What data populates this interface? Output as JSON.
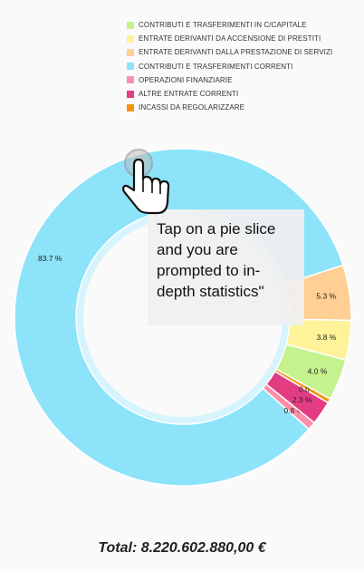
{
  "legend": {
    "items": [
      {
        "label": "CONTRIBUTI E TRASFERIMENTI IN C/CAPITALE",
        "color": "#c4f28c"
      },
      {
        "label": "ENTRATE DERIVANTI DA ACCENSIONE DI PRESTITI",
        "color": "#fff39a"
      },
      {
        "label": "ENTRATE DERIVANTI DALLA PRESTAZIONE DI SERVIZI",
        "color": "#ffcf94"
      },
      {
        "label": "CONTRIBUTI E TRASFERIMENTI CORRENTI",
        "color": "#8ce3fa"
      },
      {
        "label": "OPERAZIONI FINANZIARIE",
        "color": "#ff8fa8"
      },
      {
        "label": "ALTRE ENTRATE CORRENTI",
        "color": "#e23d82"
      },
      {
        "label": "INCASSI DA REGOLARIZZARE",
        "color": "#f5930f"
      }
    ]
  },
  "chart_data": {
    "type": "pie",
    "donut": true,
    "slices": [
      {
        "label": "CONTRIBUTI E TRASFERIMENTI CORRENTI",
        "value_pct": 83.7,
        "display": "83.7 %",
        "color": "#8ce3fa"
      },
      {
        "label": "OPERAZIONI FINANZIARIE",
        "value_pct": 0.8,
        "display": "0.8 %",
        "color": "#ff8fa8"
      },
      {
        "label": "ALTRE ENTRATE CORRENTI",
        "value_pct": 2.3,
        "display": "2.3 %",
        "color": "#e23d82"
      },
      {
        "label": "INCASSI DA REGOLARIZZARE",
        "value_pct": 0.0,
        "display": "0.0 %",
        "color": "#f5930f"
      },
      {
        "label": "CONTRIBUTI E TRASFERIMENTI IN C/CAPITALE",
        "value_pct": 4.0,
        "display": "4.0 %",
        "color": "#c4f28c"
      },
      {
        "label": "ENTRATE DERIVANTI DA ACCENSIONE DI PRESTITI",
        "value_pct": 3.8,
        "display": "3.8 %",
        "color": "#fff39a"
      },
      {
        "label": "ENTRATE DERIVANTI DALLA PRESTAZIONE DI SERVIZI",
        "value_pct": 5.3,
        "display": "5.3 %",
        "color": "#ffcf94"
      }
    ]
  },
  "tooltip": {
    "text": "Tap on a pie slice and you are prompted to in-depth statistics\""
  },
  "total": {
    "text": "Total: 8.220.602.880,00 €"
  },
  "icons": {
    "hand": "pointer-hand-icon"
  }
}
